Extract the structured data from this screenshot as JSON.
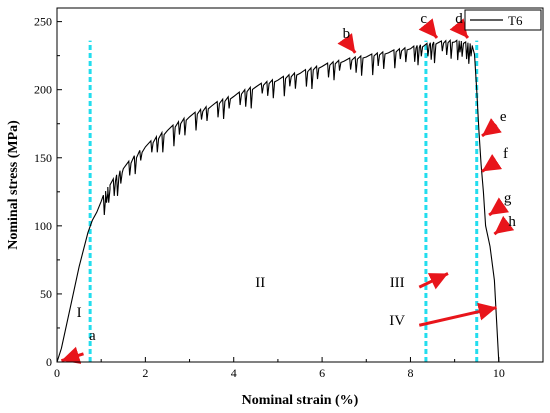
{
  "chart_data": {
    "type": "line",
    "title": "",
    "xlabel": "Nominal strain (%)",
    "ylabel": "Nominal stress (MPa)",
    "xlim": [
      0,
      11
    ],
    "ylim": [
      0,
      260
    ],
    "xticks": [
      "0",
      "2",
      "4",
      "6",
      "8",
      "10"
    ],
    "yticks": [
      "0",
      "50",
      "100",
      "150",
      "200",
      "250"
    ],
    "grid": false,
    "legend": {
      "position": "top-right",
      "entries": [
        "T6"
      ]
    },
    "series": [
      {
        "name": "T6",
        "color": "#000000",
        "x": [
          0,
          0.1,
          0.3,
          0.5,
          0.7,
          0.8,
          0.9,
          1.0,
          1.2,
          1.5,
          2.0,
          2.5,
          3.0,
          3.5,
          4.0,
          4.5,
          5.0,
          5.5,
          6.0,
          6.5,
          7.0,
          7.5,
          8.0,
          8.3,
          8.6,
          9.0,
          9.2,
          9.4,
          9.45,
          9.5,
          9.55,
          9.6,
          9.65,
          9.7,
          9.8,
          9.9,
          9.95,
          10.0
        ],
        "y": [
          0,
          10,
          40,
          70,
          95,
          104,
          110,
          118,
          130,
          142,
          158,
          170,
          180,
          188,
          195,
          202,
          207,
          212,
          217,
          221,
          224,
          227,
          230,
          232,
          234,
          235,
          234,
          232,
          226,
          200,
          170,
          145,
          125,
          100,
          85,
          60,
          30,
          0
        ]
      }
    ],
    "regions": [
      {
        "label": "I",
        "x": 0.5,
        "y": 33
      },
      {
        "label": "II",
        "x": 4.6,
        "y": 55
      },
      {
        "label": "III",
        "x": 7.7,
        "y": 55
      },
      {
        "label": "IV",
        "x": 7.7,
        "y": 27
      }
    ],
    "region_boundaries_x": [
      0.75,
      8.35,
      9.5
    ],
    "boundary_color": "#22ddee",
    "points": [
      {
        "label": "a",
        "x": 0.8,
        "y": 16,
        "arrow_from": [
          0.6,
          6
        ],
        "arrow_to": [
          0.1,
          1
        ]
      },
      {
        "label": "b",
        "x": 6.55,
        "y": 238,
        "arrow_from": [
          6.55,
          236
        ],
        "arrow_to": [
          6.75,
          227
        ]
      },
      {
        "label": "c",
        "x": 8.3,
        "y": 249,
        "arrow_from": [
          8.4,
          246
        ],
        "arrow_to": [
          8.6,
          238
        ]
      },
      {
        "label": "d",
        "x": 9.1,
        "y": 249,
        "arrow_from": [
          9.1,
          246
        ],
        "arrow_to": [
          9.3,
          238
        ]
      },
      {
        "label": "e",
        "x": 10.1,
        "y": 177,
        "arrow_from": [
          9.95,
          174
        ],
        "arrow_to": [
          9.62,
          166
        ]
      },
      {
        "label": "f",
        "x": 10.15,
        "y": 150,
        "arrow_from": [
          9.95,
          147
        ],
        "arrow_to": [
          9.62,
          140
        ]
      },
      {
        "label": "g",
        "x": 10.2,
        "y": 117,
        "arrow_from": [
          10.05,
          114
        ],
        "arrow_to": [
          9.78,
          108
        ]
      },
      {
        "label": "h",
        "x": 10.3,
        "y": 100,
        "arrow_from": [
          10.1,
          99
        ],
        "arrow_to": [
          9.9,
          94
        ]
      }
    ],
    "region_arrows": [
      {
        "label": "III",
        "from": [
          8.2,
          55
        ],
        "to": [
          8.85,
          65
        ]
      },
      {
        "label": "IV",
        "from": [
          8.2,
          27
        ],
        "to": [
          9.95,
          40
        ]
      }
    ],
    "annotation_color": "#e8151b"
  }
}
